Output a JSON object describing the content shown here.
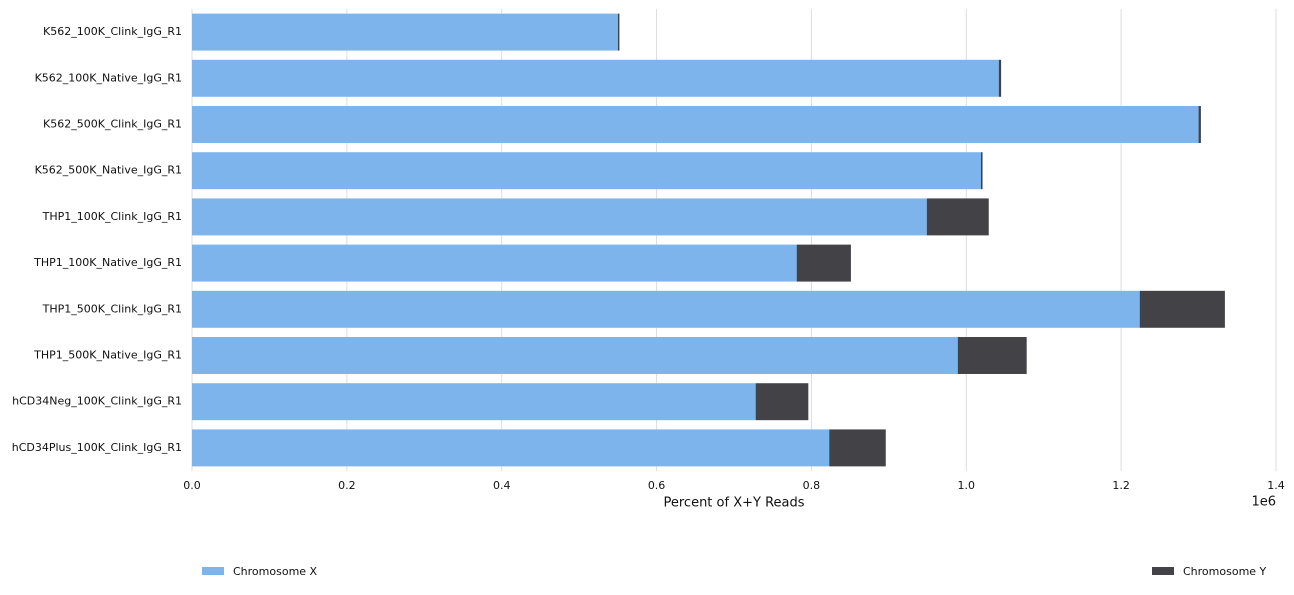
{
  "chart_data": {
    "type": "barh-stacked",
    "xlabel": "Percent of X+Y Reads",
    "x_offset_label": "1e6",
    "categories": [
      "K562_100K_Clink_IgG_R1",
      "K562_100K_Native_IgG_R1",
      "K562_500K_Clink_IgG_R1",
      "K562_500K_Native_IgG_R1",
      "THP1_100K_Clink_IgG_R1",
      "THP1_100K_Native_IgG_R1",
      "THP1_500K_Clink_IgG_R1",
      "THP1_500K_Native_IgG_R1",
      "hCD34Neg_100K_Clink_IgG_R1",
      "hCD34Plus_100K_Clink_IgG_R1"
    ],
    "series": [
      {
        "name": "Chromosome X",
        "color": "#7db4eb",
        "values": [
          550000,
          1042000,
          1300000,
          1019000,
          949000,
          781000,
          1224000,
          989000,
          728000,
          823000
        ]
      },
      {
        "name": "Chromosome Y",
        "color": "#434247",
        "values": [
          2000,
          3000,
          3000,
          2000,
          80000,
          70000,
          110000,
          89000,
          68000,
          73000
        ]
      }
    ],
    "xlim": [
      0,
      1400000
    ],
    "xticks": [
      {
        "value": 0,
        "label": "0.0"
      },
      {
        "value": 200000,
        "label": "0.2"
      },
      {
        "value": 400000,
        "label": "0.4"
      },
      {
        "value": 600000,
        "label": "0.6"
      },
      {
        "value": 800000,
        "label": "0.8"
      },
      {
        "value": 1000000,
        "label": "1.0"
      },
      {
        "value": 1200000,
        "label": "1.2"
      },
      {
        "value": 1400000,
        "label": "1.4"
      }
    ],
    "grid": true,
    "legend": "bottom-split"
  }
}
